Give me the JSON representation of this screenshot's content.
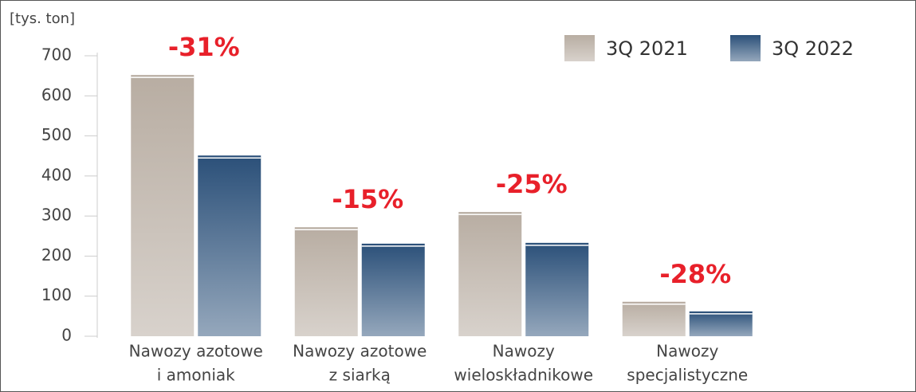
{
  "chart_data": {
    "type": "bar",
    "unit_label": "[tys. ton]",
    "categories": [
      [
        "Nawozy azotowe",
        "i amoniak"
      ],
      [
        "Nawozy azotowe",
        "z siarką"
      ],
      [
        "Nawozy",
        "wieloskładnikowe"
      ],
      [
        "Nawozy",
        "specjalistyczne"
      ]
    ],
    "series": [
      {
        "name": "3Q 2021",
        "color": "#b8ada2",
        "values": [
          652,
          272,
          310,
          86
        ]
      },
      {
        "name": "3Q 2022",
        "color": "#2b5079",
        "values": [
          451,
          231,
          233,
          62
        ]
      }
    ],
    "change_labels": [
      "-31%",
      "-15%",
      "-25%",
      "-28%"
    ],
    "change_color": "#e8202a",
    "ylim": [
      0,
      700
    ],
    "yticks": [
      0,
      100,
      200,
      300,
      400,
      500,
      600,
      700
    ],
    "legend": "top-right"
  }
}
